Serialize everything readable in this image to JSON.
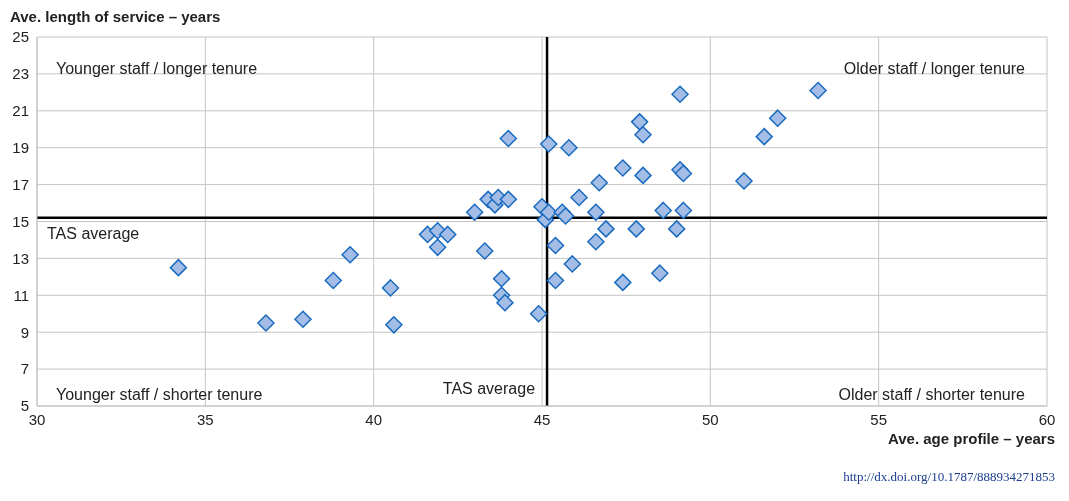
{
  "chart_data": {
    "type": "scatter",
    "xlabel": "Ave. age profile – years",
    "ylabel": "Ave. length of service – years",
    "x": [
      34.2,
      36.8,
      37.9,
      38.8,
      39.3,
      40.5,
      40.6,
      41.6,
      41.9,
      42.2,
      41.9,
      43.0,
      43.3,
      43.4,
      43.6,
      43.7,
      44.0,
      44.0,
      43.8,
      43.8,
      43.9,
      44.9,
      45.0,
      45.1,
      45.2,
      45.2,
      45.4,
      45.4,
      45.6,
      45.7,
      45.8,
      45.9,
      46.1,
      46.6,
      46.7,
      46.6,
      46.9,
      47.4,
      47.4,
      47.8,
      48.0,
      47.9,
      48.0,
      48.5,
      48.6,
      49.0,
      49.1,
      49.2,
      49.2,
      49.1,
      51.0,
      51.6,
      52.0,
      53.2
    ],
    "series": [
      {
        "color": "#a4bde6",
        "values": [
          12.5,
          9.5,
          9.7,
          11.8,
          13.2,
          11.4,
          9.4,
          14.3,
          14.5,
          14.3,
          13.6,
          15.5,
          13.4,
          16.2,
          15.9,
          16.3,
          16.2,
          19.5,
          11.9,
          11.0,
          10.6,
          10.0,
          15.8,
          15.1,
          19.2,
          15.5,
          13.7,
          11.8,
          15.5,
          15.3,
          19.0,
          12.7,
          16.3,
          15.5,
          17.1,
          13.9,
          14.6,
          17.9,
          11.7,
          14.6,
          17.5,
          20.4,
          19.7,
          12.2,
          15.6,
          14.6,
          17.8,
          17.6,
          15.6,
          21.9,
          17.2,
          19.6,
          20.6,
          22.1
        ]
      }
    ],
    "xlim": [
      30,
      60
    ],
    "xticks": [
      30,
      35,
      40,
      45,
      50,
      55,
      60
    ],
    "ylim": [
      5,
      25
    ],
    "yticks": [
      5,
      7,
      9,
      11,
      13,
      15,
      17,
      19,
      21,
      23,
      25
    ],
    "grid": true,
    "marker": "diamond",
    "legend": false,
    "ref_lines": [
      {
        "axis": "y",
        "value": 15.2,
        "label": "TAS average",
        "color": "#000000"
      },
      {
        "axis": "x",
        "value": 45.15,
        "label": "TAS average",
        "color": "#000000"
      }
    ],
    "annotations": [
      "Younger staff / longer tenure",
      "Older staff / longer tenure",
      "Younger staff / shorter tenure",
      "Older staff / shorter tenure",
      "http://dx.doi.org/10.1787/888934271853"
    ]
  }
}
